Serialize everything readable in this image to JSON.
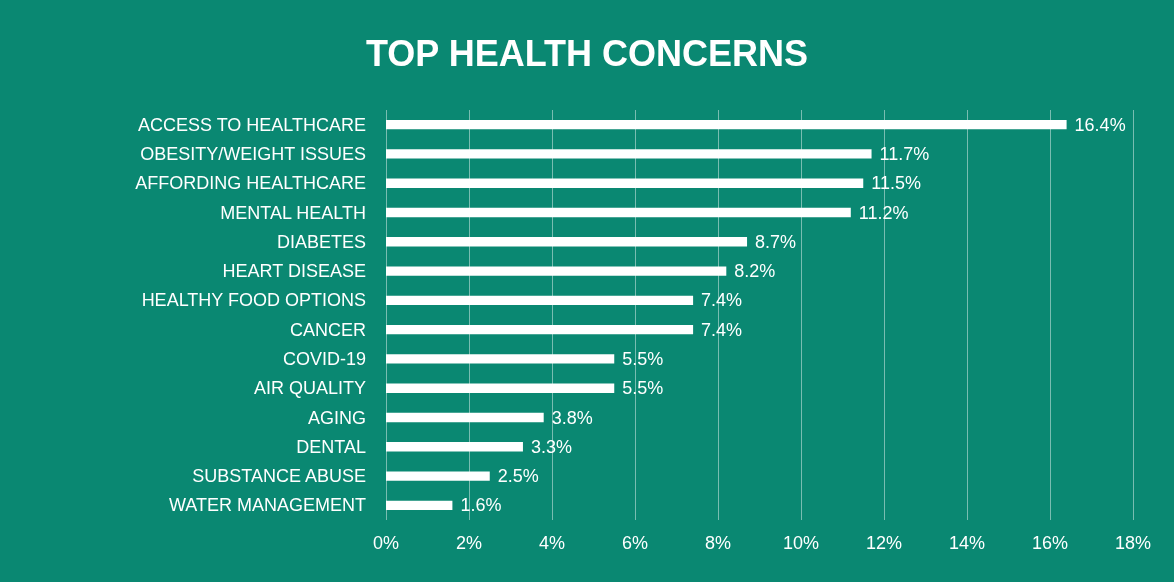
{
  "chart_data": {
    "type": "bar",
    "title": "TOP HEALTH CONCERNS",
    "orientation": "horizontal",
    "categories": [
      "ACCESS TO HEALTHCARE",
      "OBESITY/WEIGHT ISSUES",
      "AFFORDING HEALTHCARE",
      "MENTAL HEALTH",
      "DIABETES",
      "HEART DISEASE",
      "HEALTHY FOOD OPTIONS",
      "CANCER",
      "COVID-19",
      "AIR QUALITY",
      "AGING",
      "DENTAL",
      "SUBSTANCE ABUSE",
      "WATER MANAGEMENT"
    ],
    "values": [
      16.4,
      11.7,
      11.5,
      11.2,
      8.7,
      8.2,
      7.4,
      7.4,
      5.5,
      5.5,
      3.8,
      3.3,
      2.5,
      1.6
    ],
    "value_labels": [
      "16.4%",
      "11.7%",
      "11.5%",
      "11.2%",
      "8.7%",
      "8.2%",
      "7.4%",
      "7.4%",
      "5.5%",
      "5.5%",
      "3.8%",
      "3.3%",
      "2.5%",
      "1.6%"
    ],
    "color": "#ffffff",
    "xlim": [
      0,
      18
    ],
    "xticks": [
      {
        "value": 0,
        "label": "0%"
      },
      {
        "value": 2,
        "label": "2%"
      },
      {
        "value": 4,
        "label": "4%"
      },
      {
        "value": 6,
        "label": "6%"
      },
      {
        "value": 8,
        "label": "8%"
      },
      {
        "value": 10,
        "label": "10%"
      },
      {
        "value": 12,
        "label": "12%"
      },
      {
        "value": 14,
        "label": "14%"
      },
      {
        "value": 16,
        "label": "16%"
      },
      {
        "value": 18,
        "label": "18%"
      }
    ],
    "grid": "x"
  }
}
